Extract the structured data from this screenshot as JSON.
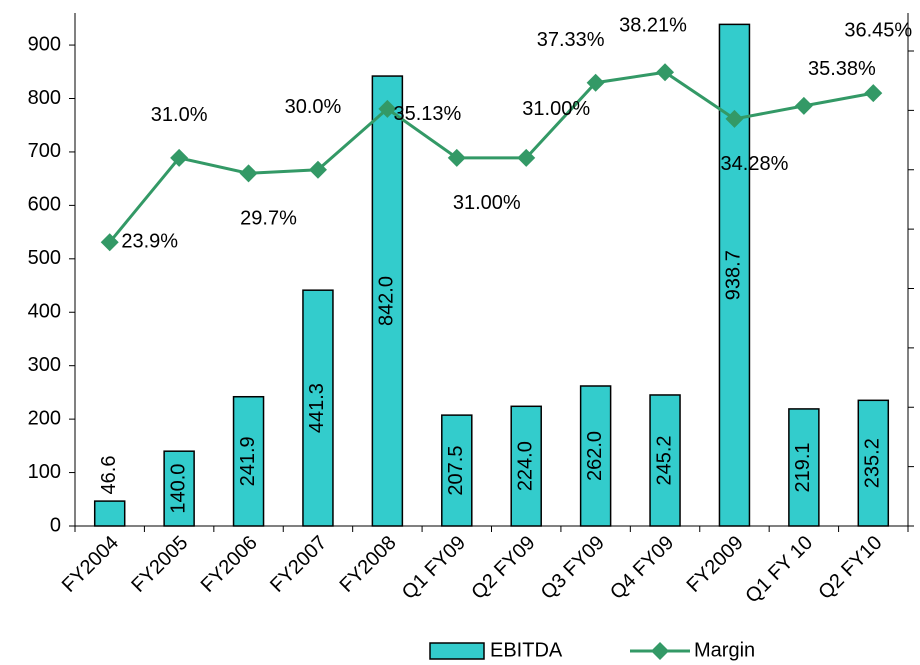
{
  "chart_data": {
    "type": "bar_line",
    "categories": [
      "FY2004",
      "FY2005",
      "FY2006",
      "FY2007",
      "FY2008",
      "Q1 FY09",
      "Q2 FY09",
      "Q3 FY09",
      "Q4 FY09",
      "FY2009",
      "Q1 FY 10",
      "Q2 FY10"
    ],
    "series": [
      {
        "name": "EBITDA",
        "type": "bar",
        "color": "#33cccc",
        "values": [
          46.6,
          140.0,
          241.9,
          441.3,
          842.0,
          207.5,
          224.0,
          262.0,
          245.2,
          938.7,
          219.1,
          235.2
        ],
        "value_labels": [
          "46.6",
          "140.0",
          "241.9",
          "441.3",
          "842.0",
          "207.5",
          "224.0",
          "262.0",
          "245.2",
          "938.7",
          "219.1",
          "235.2"
        ]
      },
      {
        "name": "Margin",
        "type": "line",
        "axis": "y2",
        "color": "#339966",
        "values": [
          23.9,
          31.0,
          29.7,
          30.0,
          35.13,
          31.0,
          31.0,
          37.33,
          38.21,
          34.28,
          35.38,
          36.45
        ],
        "value_labels": [
          "23.9%",
          "31.0%",
          "29.7%",
          "30.0%",
          "35.13%",
          "31.00%",
          "31.00%",
          "37.33%",
          "38.21%",
          "34.28%",
          "35.38%",
          "36.45%"
        ]
      }
    ],
    "ylim": [
      0,
      960
    ],
    "yticks": [
      0,
      100,
      200,
      300,
      400,
      500,
      600,
      700,
      800,
      900
    ],
    "y2lim": [
      0,
      43.2
    ],
    "y2ticks": [
      0,
      5,
      10,
      15,
      20,
      25,
      30,
      35,
      40
    ],
    "legend": "bottom"
  }
}
